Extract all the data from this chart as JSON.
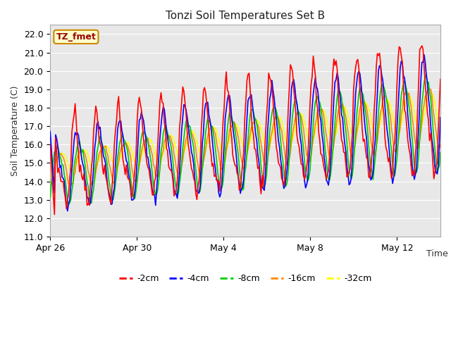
{
  "title": "Tonzi Soil Temperatures Set B",
  "ylabel": "Soil Temperature (C)",
  "xlabel": "Time",
  "ylim": [
    11.0,
    22.5
  ],
  "yticks": [
    11.0,
    12.0,
    13.0,
    14.0,
    15.0,
    16.0,
    17.0,
    18.0,
    19.0,
    20.0,
    21.0,
    22.0
  ],
  "plot_bg_color": "#e8e8e8",
  "fig_bg_color": "#ffffff",
  "grid_color": "#ffffff",
  "annotation_text": "TZ_fmet",
  "annotation_bg": "#ffffcc",
  "annotation_border": "#cc8800",
  "annotation_text_color": "#990000",
  "legend_entries": [
    "-2cm",
    "-4cm",
    "-8cm",
    "-16cm",
    "-32cm"
  ],
  "line_colors": [
    "#ff0000",
    "#0000ff",
    "#00cc00",
    "#ff8800",
    "#ffff00"
  ],
  "line_width": 1.2,
  "x_tick_dates": [
    "Apr 26",
    "Apr 30",
    "May 4",
    "May 8",
    "May 12"
  ],
  "x_tick_positions": [
    0,
    4,
    8,
    12,
    16
  ],
  "xlim": [
    0,
    18
  ]
}
